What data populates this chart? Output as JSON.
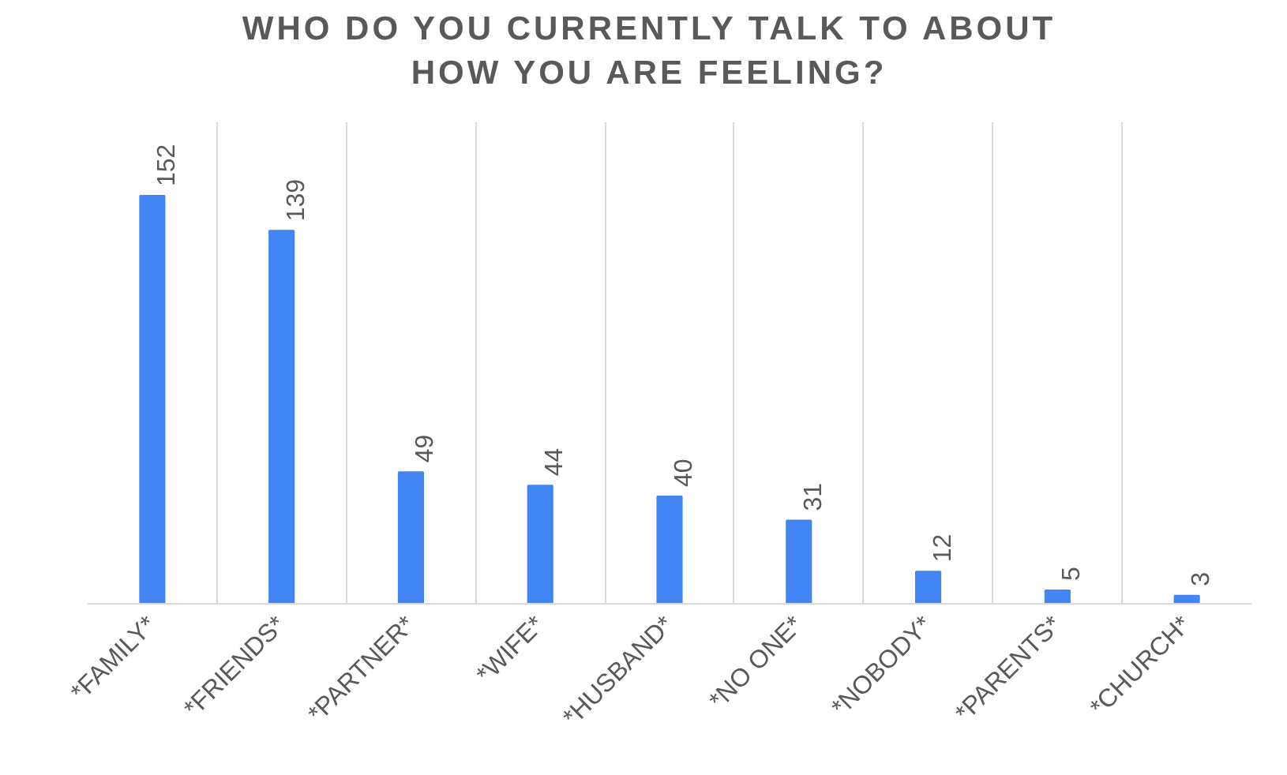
{
  "chart_data": {
    "type": "bar",
    "title": "WHO DO YOU CURRENTLY TALK TO ABOUT\nHOW YOU ARE FEELING?",
    "categories": [
      "*FAMILY*",
      "*FRIENDS*",
      "*PARTNER*",
      "*WIFE*",
      "*HUSBAND*",
      "*NO ONE*",
      "*NOBODY*",
      "*PARENTS*",
      "*CHURCH*"
    ],
    "values": [
      152,
      139,
      49,
      44,
      40,
      31,
      12,
      5,
      3
    ],
    "color": "#4285f4",
    "data_labels": true,
    "grid": "x"
  }
}
